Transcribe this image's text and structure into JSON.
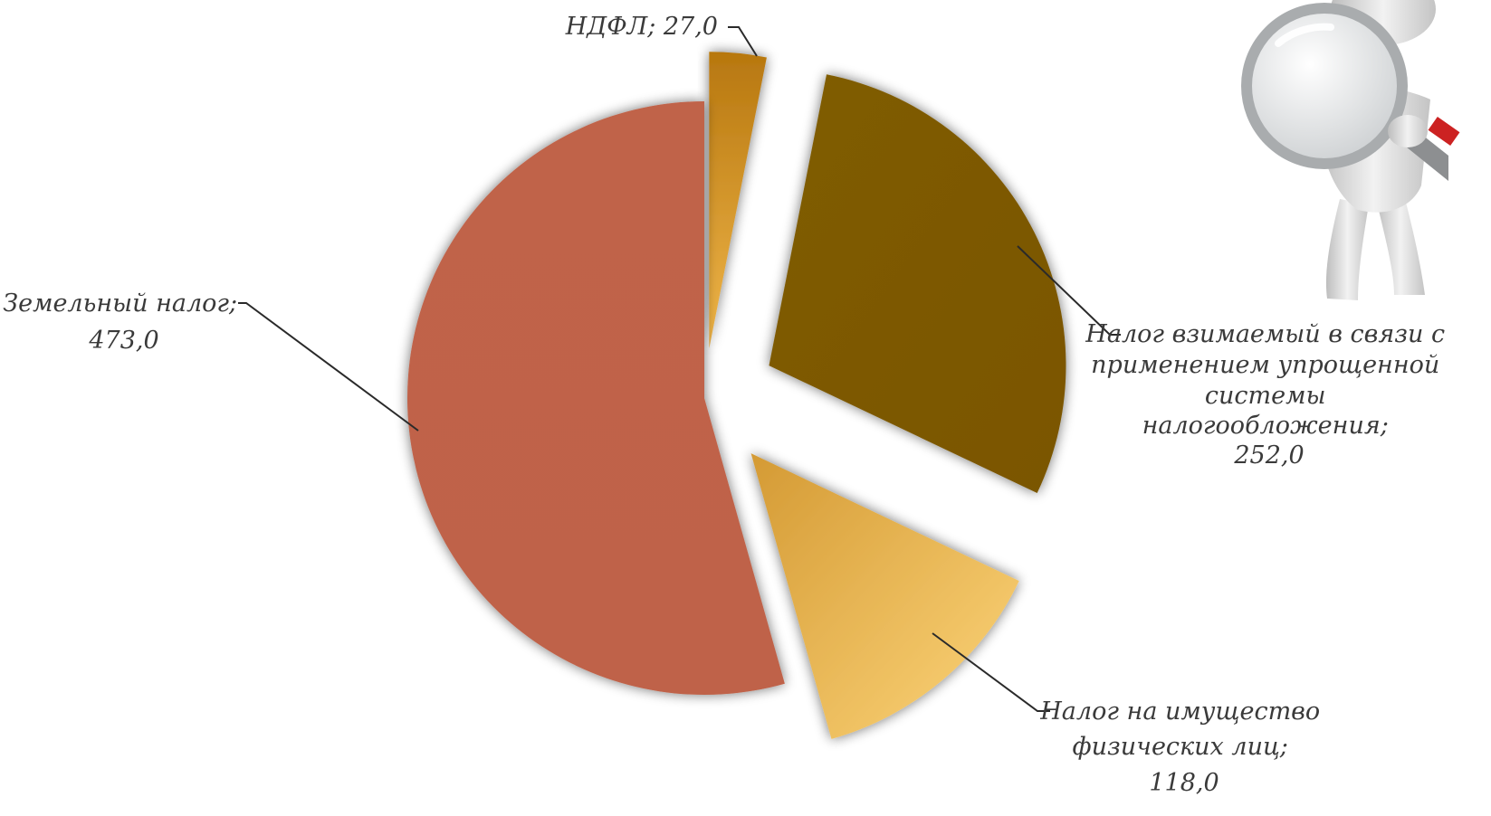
{
  "chart_data": {
    "type": "pie",
    "exploded": true,
    "slices": [
      {
        "name": "НДФЛ",
        "value": 27.0,
        "value_label": "27,0",
        "color": "#c8851a"
      },
      {
        "name": "Налог взимаемый в связи с применением упрощенной системы налогообложения",
        "value": 252.0,
        "value_label": "252,0",
        "color": "#7f5b00"
      },
      {
        "name": "Налог на имущество физических лиц",
        "value": 118.0,
        "value_label": "118,0",
        "color": "#f0be52"
      },
      {
        "name": "Земельный налог",
        "value": 473.0,
        "value_label": "473,0",
        "color": "#c0634a"
      }
    ],
    "labels": {
      "ndfl": "НДФЛ; 27,0",
      "usn": [
        "Налог взимаемый в связи с",
        "применением упрощенной",
        "системы",
        "налогообложения;",
        "252,0"
      ],
      "property": [
        "Налог на имущество",
        "физических лиц;",
        "118,0"
      ],
      "land": [
        "Земельный налог;",
        "473,0"
      ]
    }
  },
  "decor": {
    "figure": "magnifier-figure-icon"
  }
}
